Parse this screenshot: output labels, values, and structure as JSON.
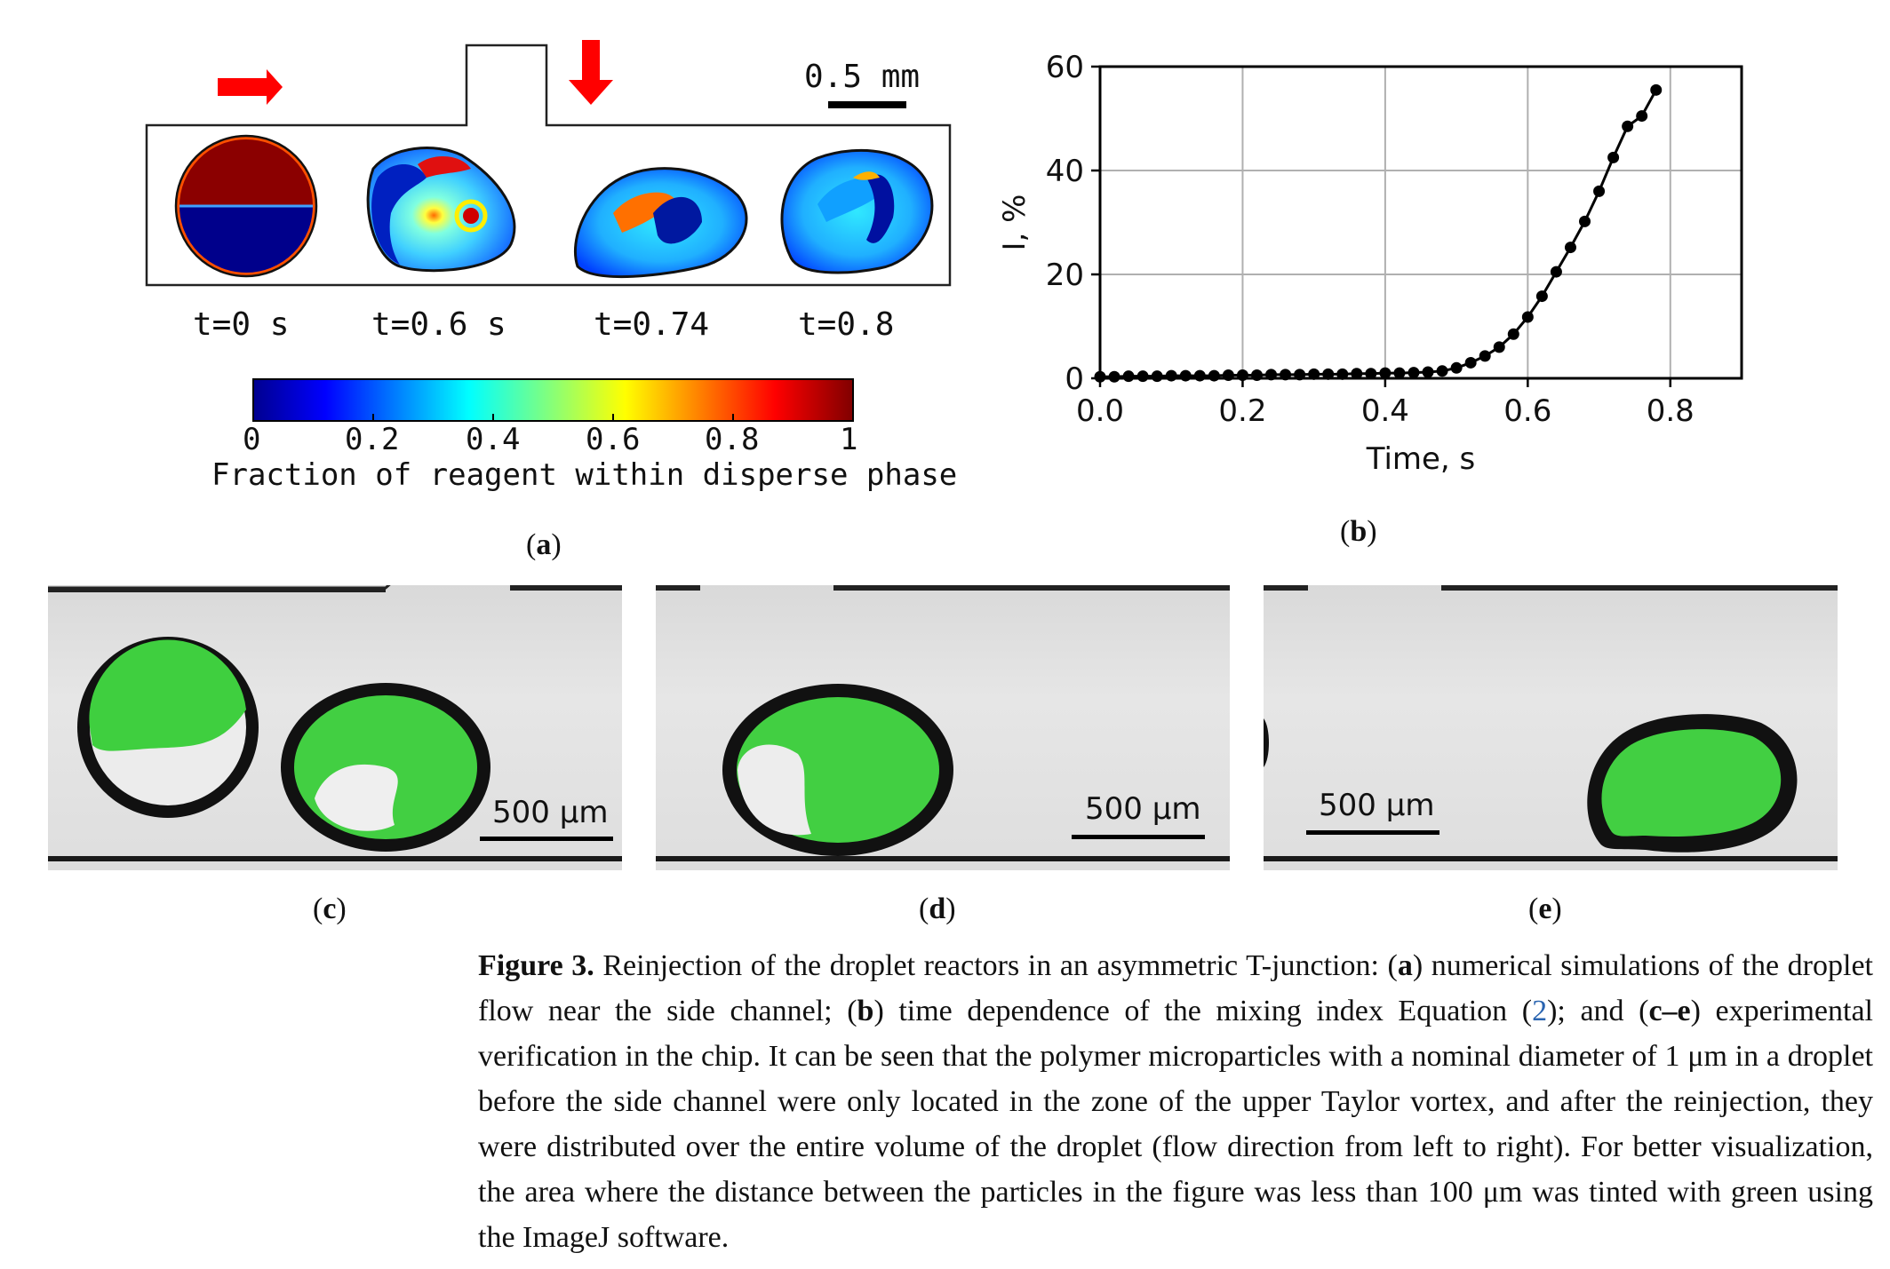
{
  "panel_a": {
    "scale_label": "0.5 mm",
    "time_labels": [
      "t=0 s",
      "t=0.6 s",
      "t=0.74",
      "t=0.8"
    ],
    "colorbar_ticks": [
      "0",
      "0.2",
      "0.4",
      "0.6",
      "0.8",
      "1"
    ],
    "colorbar_label": "Fraction of reagent within disperse phase",
    "label": "(a)"
  },
  "panel_b": {
    "label": "(b)"
  },
  "chart_data": {
    "type": "line",
    "xlabel": "Time, s",
    "ylabel": "I, %",
    "xlim": [
      0,
      0.9
    ],
    "ylim": [
      0,
      60
    ],
    "xticks": [
      0.0,
      0.2,
      0.4,
      0.6,
      0.8
    ],
    "xtick_labels": [
      "0.0",
      "0.2",
      "0.4",
      "0.6",
      "0.8"
    ],
    "yticks": [
      0,
      20,
      40,
      60
    ],
    "ytick_labels": [
      "0",
      "20",
      "40",
      "60"
    ],
    "grid": true,
    "series": [
      {
        "x": [
          0.0,
          0.02,
          0.04,
          0.06,
          0.08,
          0.1,
          0.12,
          0.14,
          0.16,
          0.18,
          0.2,
          0.22,
          0.24,
          0.26,
          0.28,
          0.3,
          0.32,
          0.34,
          0.36,
          0.38,
          0.4,
          0.42,
          0.44,
          0.46,
          0.48,
          0.5,
          0.52,
          0.54,
          0.56,
          0.58,
          0.6,
          0.62,
          0.64,
          0.66,
          0.68,
          0.7,
          0.72,
          0.74,
          0.76,
          0.78
        ],
        "y": [
          0.3,
          0.3,
          0.4,
          0.4,
          0.4,
          0.5,
          0.5,
          0.5,
          0.5,
          0.6,
          0.6,
          0.6,
          0.7,
          0.7,
          0.7,
          0.8,
          0.8,
          0.8,
          0.9,
          0.9,
          1.0,
          1.0,
          1.1,
          1.2,
          1.4,
          2.0,
          3.0,
          4.3,
          6.0,
          8.5,
          11.8,
          15.8,
          20.5,
          25.2,
          30.2,
          36.0,
          42.5,
          48.5,
          50.5,
          55.5
        ]
      }
    ]
  },
  "panel_c": {
    "scale_label": "500 μm",
    "label": "(c)"
  },
  "panel_d": {
    "scale_label": "500 μm",
    "label": "(d)"
  },
  "panel_e": {
    "scale_label": "500 μm",
    "label": "(e)"
  },
  "caption": {
    "figure": "Figure 3.",
    "p1": " Reinjection of the droplet reactors in an asymmetric T-junction: (",
    "a": "a",
    "p2": ") numerical simulations of the droplet flow near the side channel; (",
    "b": "b",
    "p3": ") time dependence of the mixing index Equation (",
    "eq": "2",
    "p4": "); and (",
    "ce": "c–e",
    "p5": ") experimental verification in the chip. It can be seen that the polymer microparticles with a nominal diameter of 1 μm in a droplet before the side channel were only located in the zone of the upper Taylor vortex, and after the reinjection, they were distributed over the entire volume of the droplet (flow direction from left to right). For better visualization, the area where the distance between the particles in the figure was less than 100 μm was tinted with green using the ImageJ software."
  },
  "colors": {
    "arrow": "#ff0000",
    "green": "#4ccb4c",
    "dark_red": "#8b0000",
    "dark_blue": "#00008b"
  }
}
